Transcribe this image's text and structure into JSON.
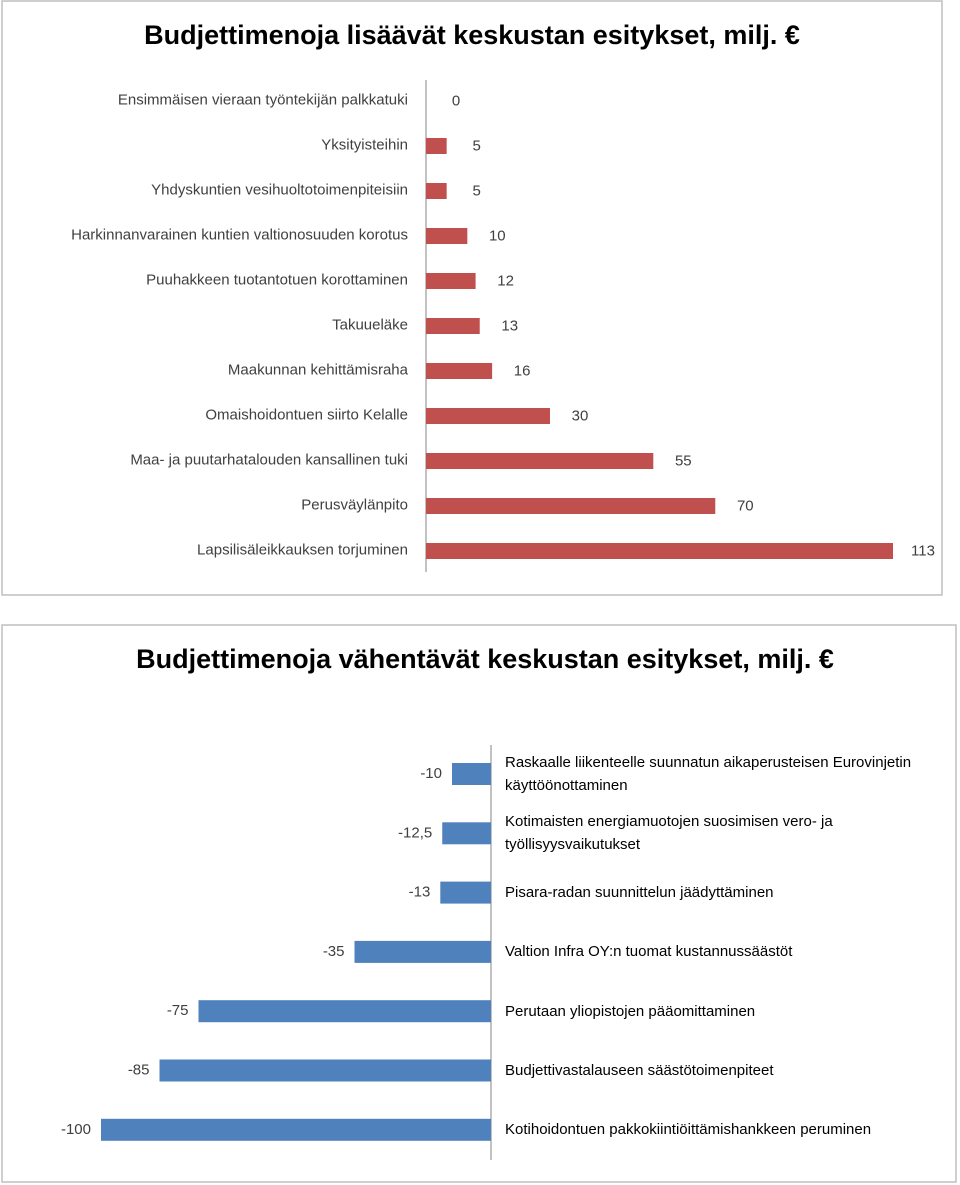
{
  "chart_data": [
    {
      "type": "hbar",
      "title": "Budjettimenoja lisäävät  keskustan esitykset, milj. €",
      "categories": [
        "Ensimmäisen vieraan työntekijän palkkatuki",
        "Yksityisteihin",
        "Yhdyskuntien vesihuoltotoimenpiteisiin",
        "Harkinnanvarainen kuntien valtionosuuden korotus",
        "Puuhakkeen tuotantotuen korottaminen",
        "Takuueläke",
        "Maakunnan kehittämisraha",
        "Omaishoidontuen siirto Kelalle",
        "Maa- ja puutarhatalouden kansallinen tuki",
        "Perusväylänpito",
        "Lapsilisäleikkauksen torjuminen"
      ],
      "values": [
        0,
        5,
        5,
        10,
        12,
        13,
        16,
        30,
        55,
        70,
        113
      ],
      "color": "#c0504d",
      "xlim": [
        0,
        113
      ]
    },
    {
      "type": "hbar",
      "title": "Budjettimenoja vähentävät keskustan esitykset, milj. €",
      "categories": [
        "Raskaalle liikenteelle suunnatun aikaperusteisen Eurovinjetin käyttöönottaminen",
        "Kotimaisten energiamuotojen suosimisen vero- ja työllisyysvaikutukset",
        "Pisara-radan suunnittelun jäädyttäminen",
        "Valtion Infra OY:n tuomat kustannussäästöt",
        "Perutaan yliopistojen pääomittaminen",
        "Budjettivastalauseen säästötoimenpiteet",
        "Kotihoidontuen pakkokiintiöittämishankkeen peruminen"
      ],
      "values": [
        -10,
        -12.5,
        -13,
        -35,
        -75,
        -85,
        -100
      ],
      "value_labels": [
        "-10",
        "-12,5",
        "-13",
        "-35",
        "-75",
        "-85",
        "-100"
      ],
      "color": "#4f81bd",
      "xlim": [
        -100,
        0
      ]
    }
  ]
}
